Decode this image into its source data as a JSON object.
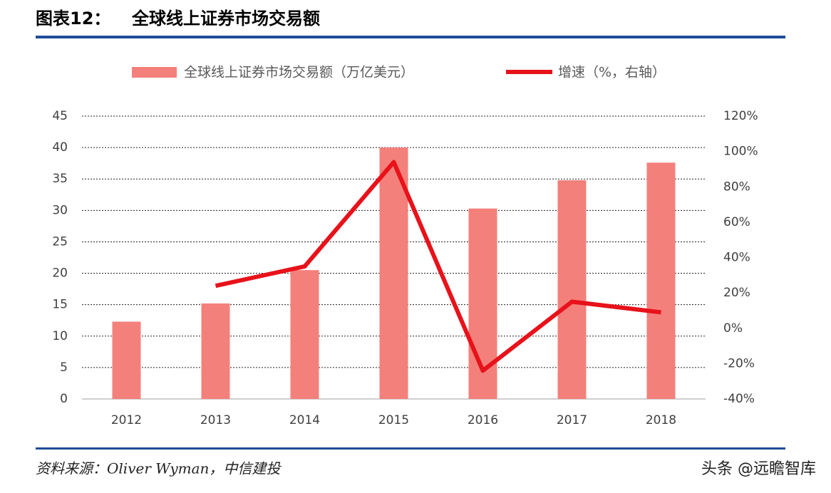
{
  "chart_data": {
    "type": "bar-line",
    "figure_label": "图表12：",
    "title": "全球线上证券市场交易额",
    "categories": [
      "2012",
      "2013",
      "2014",
      "2015",
      "2016",
      "2017",
      "2018"
    ],
    "series": [
      {
        "name": "全球线上证券市场交易额（万亿美元）",
        "type": "bar",
        "color": "#f4807b",
        "values": [
          12.3,
          15.2,
          20.5,
          40,
          30.3,
          34.8,
          37.6
        ]
      },
      {
        "name": "增速（%，右轴）",
        "type": "line",
        "axis": "y2",
        "color": "#e8121a",
        "values": [
          null,
          24,
          35,
          94,
          -24,
          15,
          9
        ]
      }
    ],
    "ylim": [
      0,
      45
    ],
    "yticks": [
      0,
      5,
      10,
      15,
      20,
      25,
      30,
      35,
      40,
      45
    ],
    "y2lim": [
      -40,
      120
    ],
    "y2ticks": [
      {
        "value": -40,
        "label": "-40%"
      },
      {
        "value": -20,
        "label": "-20%"
      },
      {
        "value": 0,
        "label": "0%"
      },
      {
        "value": 20,
        "label": "20%"
      },
      {
        "value": 40,
        "label": "40%"
      },
      {
        "value": 60,
        "label": "60%"
      },
      {
        "value": 80,
        "label": "80%"
      },
      {
        "value": 100,
        "label": "100%"
      },
      {
        "value": 120,
        "label": "120%"
      }
    ],
    "grid": true,
    "source": "资料来源：Oliver Wyman，中信建投",
    "watermark": "头条 @远瞻智库"
  }
}
